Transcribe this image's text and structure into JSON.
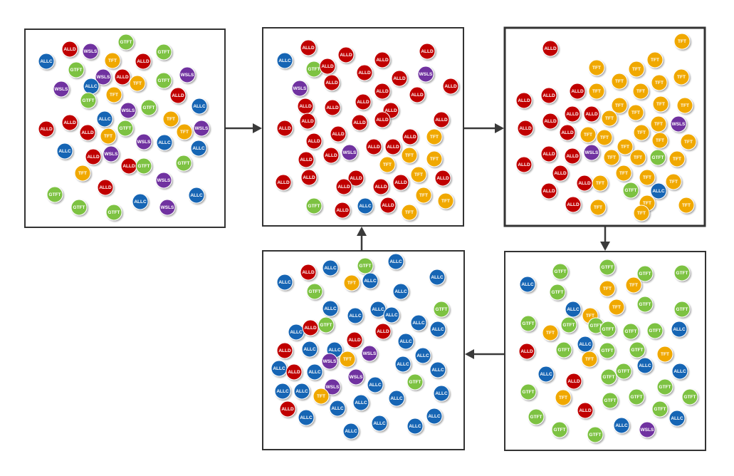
{
  "strategies": {
    "ALLD": {
      "label": "ALLD",
      "color": "#c00000"
    },
    "ALLC": {
      "label": "ALLC",
      "color": "#1565b4"
    },
    "TFT": {
      "label": "TFT",
      "color": "#f0a800"
    },
    "GTFT": {
      "label": "GTFT",
      "color": "#7dc242"
    },
    "WSLS": {
      "label": "WSLS",
      "color": "#7030a0"
    }
  },
  "panels": [
    {
      "id": "panel-1",
      "counts": {
        "ALLD": 13,
        "ALLC": 11,
        "TFT": 8,
        "GTFT": 12,
        "WSLS": 11
      }
    },
    {
      "id": "panel-2",
      "counts": {
        "ALLD": 47,
        "ALLC": 2,
        "TFT": 10,
        "GTFT": 2,
        "WSLS": 3
      }
    },
    {
      "id": "panel-3",
      "counts": {
        "ALLD": 20,
        "ALLC": 1,
        "TFT": 37,
        "GTFT": 2,
        "WSLS": 2
      }
    },
    {
      "id": "panel-4",
      "counts": {
        "ALLD": 3,
        "ALLC": 13,
        "TFT": 12,
        "GTFT": 29,
        "WSLS": 1
      }
    },
    {
      "id": "panel-5",
      "counts": {
        "ALLD": 8,
        "ALLC": 40,
        "TFT": 4,
        "GTFT": 4,
        "WSLS": 6
      }
    }
  ]
}
